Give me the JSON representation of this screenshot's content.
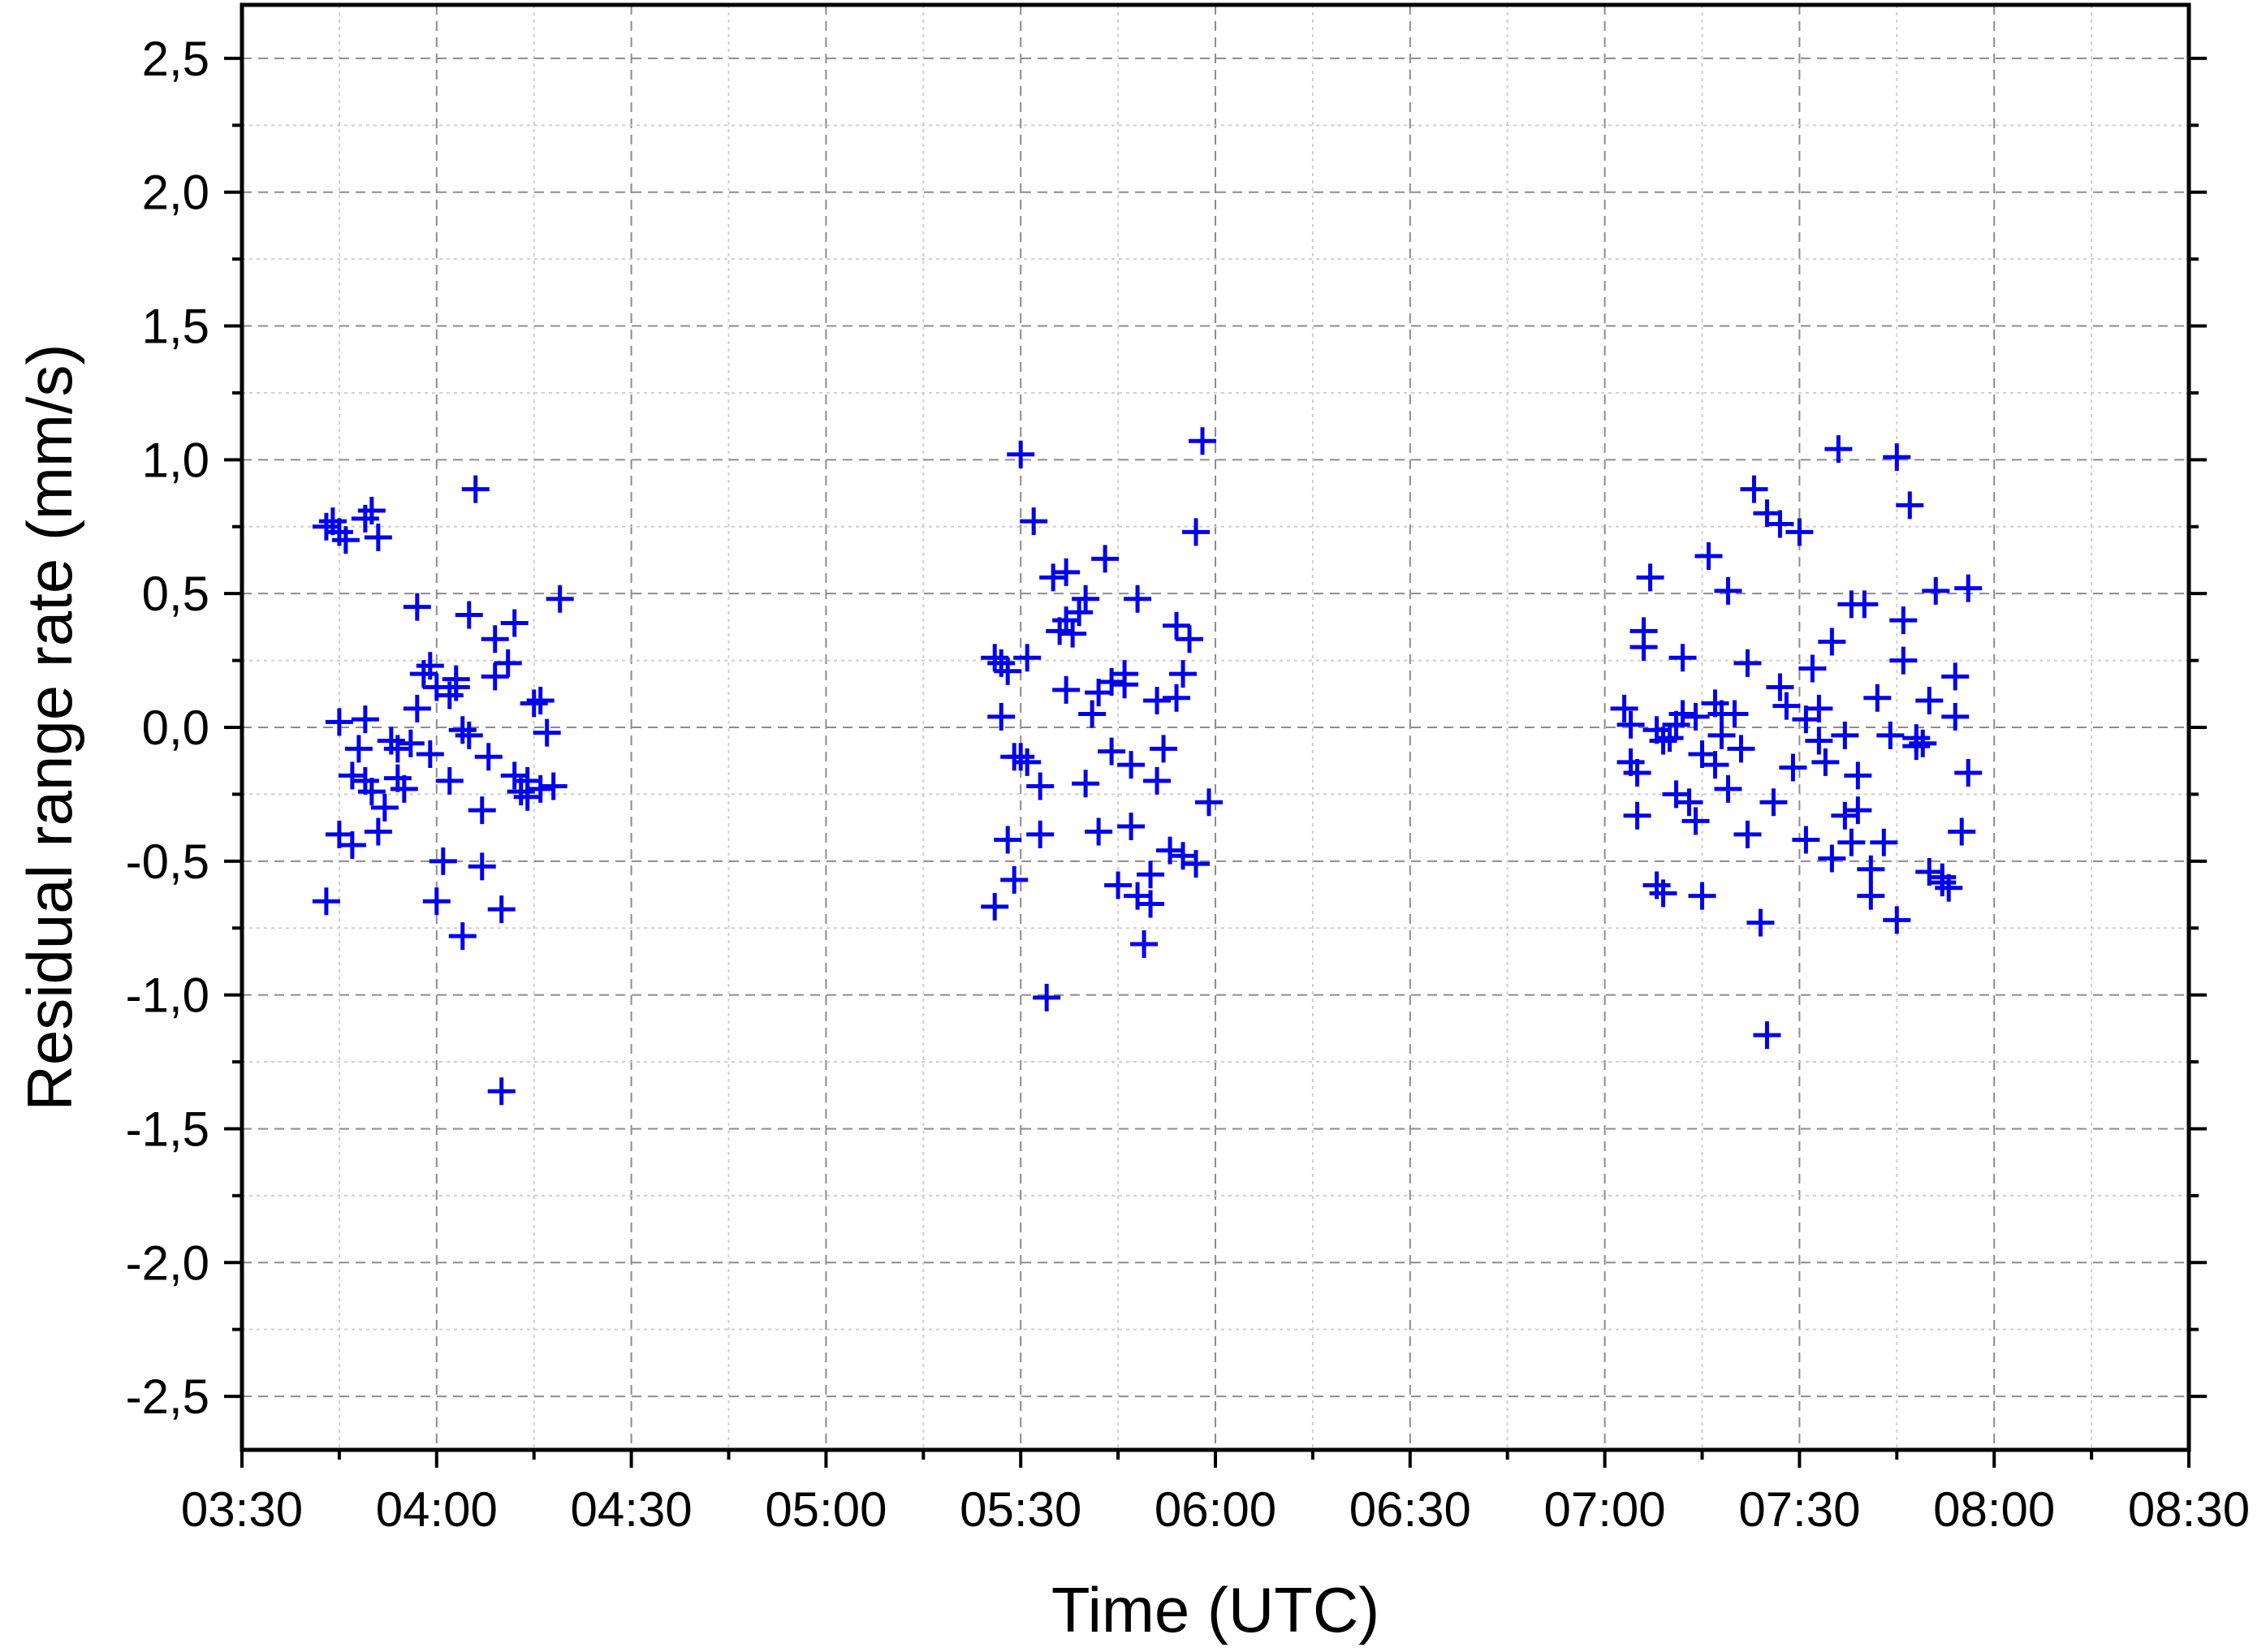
{
  "chart_data": {
    "type": "scatter",
    "xlabel": "Time (UTC)",
    "ylabel": "Residual range rate (mm/s)",
    "x_ticks": [
      "03:30",
      "04:00",
      "04:30",
      "05:00",
      "05:30",
      "06:00",
      "06:30",
      "07:00",
      "07:30",
      "08:00",
      "08:30"
    ],
    "y_ticks": [
      "2,5",
      "2,0",
      "1,5",
      "1,0",
      "0,5",
      "0,0",
      "-0,5",
      "-1,0",
      "-1,5",
      "-2,0",
      "-2,5"
    ],
    "xlim": [
      "03:30",
      "08:30"
    ],
    "ylim": [
      -2.7,
      2.7
    ],
    "grid": true,
    "marker": "plus",
    "color": "#0000ee",
    "series": [
      {
        "points": [
          [
            "03:43",
            0.75
          ],
          [
            "03:44",
            0.77
          ],
          [
            "03:45",
            0.73
          ],
          [
            "03:46",
            0.7
          ],
          [
            "03:49",
            0.78
          ],
          [
            "03:50",
            0.81
          ],
          [
            "03:51",
            0.71
          ],
          [
            "03:43",
            -0.65
          ],
          [
            "03:45",
            0.02
          ],
          [
            "03:45",
            -0.4
          ],
          [
            "03:47",
            -0.44
          ],
          [
            "03:47",
            -0.18
          ],
          [
            "03:48",
            -0.08
          ],
          [
            "03:49",
            -0.2
          ],
          [
            "03:49",
            0.03
          ],
          [
            "03:50",
            -0.24
          ],
          [
            "03:51",
            -0.39
          ],
          [
            "03:52",
            -0.3
          ],
          [
            "03:53",
            -0.05
          ],
          [
            "03:54",
            -0.19
          ],
          [
            "03:54",
            -0.08
          ],
          [
            "03:55",
            -0.23
          ],
          [
            "03:56",
            -0.06
          ],
          [
            "03:57",
            0.07
          ],
          [
            "03:57",
            0.45
          ],
          [
            "03:58",
            0.2
          ],
          [
            "03:59",
            0.23
          ],
          [
            "03:59",
            -0.1
          ],
          [
            "04:00",
            -0.65
          ],
          [
            "04:00",
            0.15
          ],
          [
            "04:01",
            -0.5
          ],
          [
            "04:02",
            0.12
          ],
          [
            "04:02",
            -0.2
          ],
          [
            "04:03",
            0.18
          ],
          [
            "04:03",
            0.15
          ],
          [
            "04:04",
            -0.78
          ],
          [
            "04:04",
            -0.01
          ],
          [
            "04:05",
            0.42
          ],
          [
            "04:05",
            -0.03
          ],
          [
            "04:06",
            0.89
          ],
          [
            "04:07",
            -0.31
          ],
          [
            "04:07",
            -0.52
          ],
          [
            "04:08",
            -0.11
          ],
          [
            "04:09",
            0.33
          ],
          [
            "04:09",
            0.19
          ],
          [
            "04:10",
            -0.68
          ],
          [
            "04:10",
            -1.36
          ],
          [
            "04:11",
            0.24
          ],
          [
            "04:12",
            0.39
          ],
          [
            "04:12",
            -0.18
          ],
          [
            "04:13",
            -0.24
          ],
          [
            "04:14",
            -0.26
          ],
          [
            "04:14",
            -0.2
          ],
          [
            "04:15",
            0.09
          ],
          [
            "04:16",
            0.1
          ],
          [
            "04:16",
            -0.23
          ],
          [
            "04:17",
            -0.02
          ],
          [
            "04:18",
            -0.22
          ],
          [
            "04:19",
            0.48
          ],
          [
            "05:26",
            0.26
          ],
          [
            "05:26",
            -0.67
          ],
          [
            "05:27",
            0.24
          ],
          [
            "05:27",
            0.04
          ],
          [
            "05:28",
            0.21
          ],
          [
            "05:28",
            -0.42
          ],
          [
            "05:29",
            -0.57
          ],
          [
            "05:29",
            -0.11
          ],
          [
            "05:30",
            1.02
          ],
          [
            "05:30",
            -0.11
          ],
          [
            "05:31",
            0.26
          ],
          [
            "05:31",
            -0.13
          ],
          [
            "05:32",
            0.77
          ],
          [
            "05:33",
            -0.4
          ],
          [
            "05:33",
            -0.22
          ],
          [
            "05:34",
            -1.01
          ],
          [
            "05:35",
            0.56
          ],
          [
            "05:36",
            0.36
          ],
          [
            "05:37",
            0.4
          ],
          [
            "05:37",
            0.58
          ],
          [
            "05:37",
            0.14
          ],
          [
            "05:38",
            0.35
          ],
          [
            "05:39",
            0.43
          ],
          [
            "05:40",
            0.48
          ],
          [
            "05:40",
            -0.21
          ],
          [
            "05:41",
            0.05
          ],
          [
            "05:42",
            -0.39
          ],
          [
            "05:42",
            0.13
          ],
          [
            "05:43",
            0.63
          ],
          [
            "05:44",
            -0.09
          ],
          [
            "05:44",
            0.17
          ],
          [
            "05:45",
            -0.59
          ],
          [
            "05:46",
            0.2
          ],
          [
            "05:46",
            0.16
          ],
          [
            "05:47",
            -0.37
          ],
          [
            "05:47",
            -0.14
          ],
          [
            "05:48",
            0.48
          ],
          [
            "05:48",
            -0.63
          ],
          [
            "05:49",
            -0.81
          ],
          [
            "05:50",
            -0.66
          ],
          [
            "05:50",
            -0.55
          ],
          [
            "05:51",
            0.1
          ],
          [
            "05:51",
            -0.2
          ],
          [
            "05:52",
            -0.08
          ],
          [
            "05:53",
            -0.46
          ],
          [
            "05:54",
            0.11
          ],
          [
            "05:54",
            0.38
          ],
          [
            "05:55",
            -0.48
          ],
          [
            "05:55",
            0.2
          ],
          [
            "05:56",
            0.33
          ],
          [
            "05:57",
            -0.51
          ],
          [
            "05:57",
            0.73
          ],
          [
            "05:58",
            1.07
          ],
          [
            "05:59",
            -0.28
          ],
          [
            "07:03",
            0.07
          ],
          [
            "07:04",
            -0.13
          ],
          [
            "07:04",
            0.01
          ],
          [
            "07:05",
            -0.33
          ],
          [
            "07:05",
            -0.17
          ],
          [
            "07:06",
            0.36
          ],
          [
            "07:06",
            0.3
          ],
          [
            "07:07",
            0.56
          ],
          [
            "07:08",
            -0.59
          ],
          [
            "07:08",
            -0.01
          ],
          [
            "07:09",
            -0.62
          ],
          [
            "07:09",
            -0.05
          ],
          [
            "07:10",
            -0.04
          ],
          [
            "07:11",
            -0.25
          ],
          [
            "07:11",
            0.01
          ],
          [
            "07:12",
            0.26
          ],
          [
            "07:12",
            0.05
          ],
          [
            "07:13",
            -0.28
          ],
          [
            "07:14",
            0.04
          ],
          [
            "07:14",
            -0.35
          ],
          [
            "07:15",
            -0.63
          ],
          [
            "07:15",
            -0.1
          ],
          [
            "07:16",
            0.64
          ],
          [
            "07:17",
            0.09
          ],
          [
            "07:17",
            -0.14
          ],
          [
            "07:18",
            0.05
          ],
          [
            "07:18",
            -0.03
          ],
          [
            "07:19",
            0.51
          ],
          [
            "07:19",
            -0.23
          ],
          [
            "07:20",
            0.05
          ],
          [
            "07:21",
            -0.08
          ],
          [
            "07:22",
            -0.4
          ],
          [
            "07:22",
            0.24
          ],
          [
            "07:23",
            0.89
          ],
          [
            "07:24",
            -0.73
          ],
          [
            "07:25",
            -1.15
          ],
          [
            "07:25",
            0.8
          ],
          [
            "07:26",
            -0.28
          ],
          [
            "07:27",
            0.15
          ],
          [
            "07:27",
            0.76
          ],
          [
            "07:28",
            0.08
          ],
          [
            "07:29",
            -0.15
          ],
          [
            "07:30",
            0.73
          ],
          [
            "07:31",
            0.03
          ],
          [
            "07:31",
            -0.42
          ],
          [
            "07:32",
            0.22
          ],
          [
            "07:33",
            -0.05
          ],
          [
            "07:33",
            0.07
          ],
          [
            "07:34",
            -0.13
          ],
          [
            "07:35",
            -0.49
          ],
          [
            "07:35",
            0.32
          ],
          [
            "07:36",
            1.04
          ],
          [
            "07:37",
            -0.33
          ],
          [
            "07:37",
            -0.03
          ],
          [
            "07:38",
            -0.43
          ],
          [
            "07:38",
            0.46
          ],
          [
            "07:39",
            -0.18
          ],
          [
            "07:39",
            -0.31
          ],
          [
            "07:40",
            0.46
          ],
          [
            "07:41",
            -0.63
          ],
          [
            "07:41",
            -0.53
          ],
          [
            "07:42",
            0.11
          ],
          [
            "07:43",
            -0.43
          ],
          [
            "07:44",
            -0.03
          ],
          [
            "07:45",
            1.01
          ],
          [
            "07:45",
            -0.72
          ],
          [
            "07:46",
            0.25
          ],
          [
            "07:46",
            0.4
          ],
          [
            "07:47",
            0.83
          ],
          [
            "07:48",
            -0.07
          ],
          [
            "07:48",
            -0.04
          ],
          [
            "07:49",
            -0.06
          ],
          [
            "07:50",
            0.1
          ],
          [
            "07:50",
            -0.54
          ],
          [
            "07:51",
            0.51
          ],
          [
            "07:52",
            -0.58
          ],
          [
            "07:52",
            -0.56
          ],
          [
            "07:53",
            -0.6
          ],
          [
            "07:54",
            0.19
          ],
          [
            "07:54",
            0.04
          ],
          [
            "07:55",
            -0.39
          ],
          [
            "07:56",
            -0.17
          ],
          [
            "07:56",
            0.52
          ]
        ]
      }
    ]
  }
}
